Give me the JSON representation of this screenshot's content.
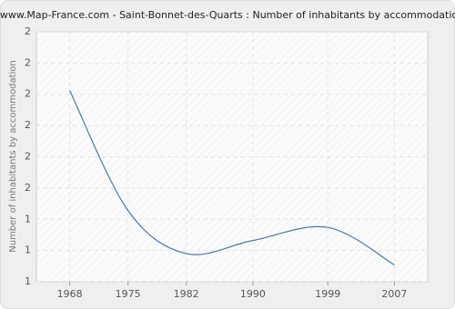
{
  "chart_data": {
    "type": "line",
    "title": "www.Map-France.com - Saint-Bonnet-des-Quarts : Number of inhabitants by accommodation",
    "y_label": "Number of inhabitants by accommodation",
    "x": [
      1968,
      1975,
      1982,
      1990,
      1999,
      2007
    ],
    "series": [
      {
        "name": "Number of inhabitants by accommodation",
        "color": "#4a78a8",
        "values": [
          2.02,
          1.38,
          1.15,
          1.22,
          1.29,
          1.09
        ]
      }
    ],
    "xlim": [
      1964,
      2011
    ],
    "xticks": [
      1968,
      1975,
      1982,
      1990,
      1999,
      2007
    ],
    "ylim": [
      1,
      2.3333
    ],
    "yticks": [
      {
        "value": 1,
        "label": "1"
      },
      {
        "value": 1.1667,
        "label": "1"
      },
      {
        "value": 1.3333,
        "label": "1"
      },
      {
        "value": 1.5,
        "label": "2"
      },
      {
        "value": 1.6667,
        "label": "2"
      },
      {
        "value": 1.8333,
        "label": "2"
      },
      {
        "value": 2,
        "label": "2"
      },
      {
        "value": 2.1667,
        "label": "2"
      },
      {
        "value": 2.3333,
        "label": "2"
      }
    ],
    "grid": true
  }
}
